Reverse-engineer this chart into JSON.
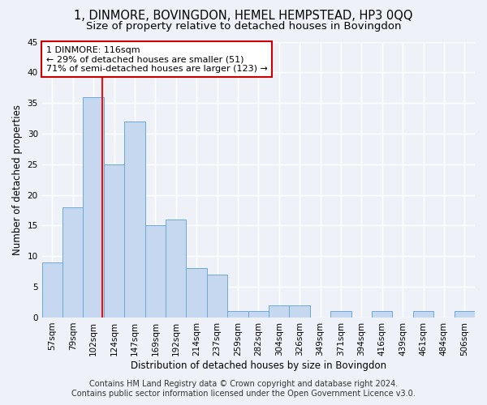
{
  "title": "1, DINMORE, BOVINGDON, HEMEL HEMPSTEAD, HP3 0QQ",
  "subtitle": "Size of property relative to detached houses in Bovingdon",
  "xlabel": "Distribution of detached houses by size in Bovingdon",
  "ylabel": "Number of detached properties",
  "bar_labels": [
    "57sqm",
    "79sqm",
    "102sqm",
    "124sqm",
    "147sqm",
    "169sqm",
    "192sqm",
    "214sqm",
    "237sqm",
    "259sqm",
    "282sqm",
    "304sqm",
    "326sqm",
    "349sqm",
    "371sqm",
    "394sqm",
    "416sqm",
    "439sqm",
    "461sqm",
    "484sqm",
    "506sqm"
  ],
  "bar_values": [
    9,
    18,
    36,
    25,
    32,
    15,
    16,
    8,
    7,
    1,
    1,
    2,
    2,
    0,
    1,
    0,
    1,
    0,
    1,
    0,
    1
  ],
  "bar_color": "#c5d8f0",
  "bar_edge_color": "#6aaad4",
  "vline_color": "#ee1111",
  "vline_bin": 2.42,
  "annotation_text_line1": "1 DINMORE: 116sqm",
  "annotation_text_line2": "← 29% of detached houses are smaller (51)",
  "annotation_text_line3": "71% of semi-detached houses are larger (123) →",
  "annotation_box_color": "#ffffff",
  "annotation_box_edge": "#cc0000",
  "ylim": [
    0,
    45
  ],
  "yticks": [
    0,
    5,
    10,
    15,
    20,
    25,
    30,
    35,
    40,
    45
  ],
  "footer_line1": "Contains HM Land Registry data © Crown copyright and database right 2024.",
  "footer_line2": "Contains public sector information licensed under the Open Government Licence v3.0.",
  "background_color": "#eef2f8",
  "grid_color": "#ffffff",
  "title_fontsize": 10.5,
  "subtitle_fontsize": 9.5,
  "axis_label_fontsize": 8.5,
  "tick_fontsize": 7.5,
  "annotation_fontsize": 8,
  "footer_fontsize": 7
}
